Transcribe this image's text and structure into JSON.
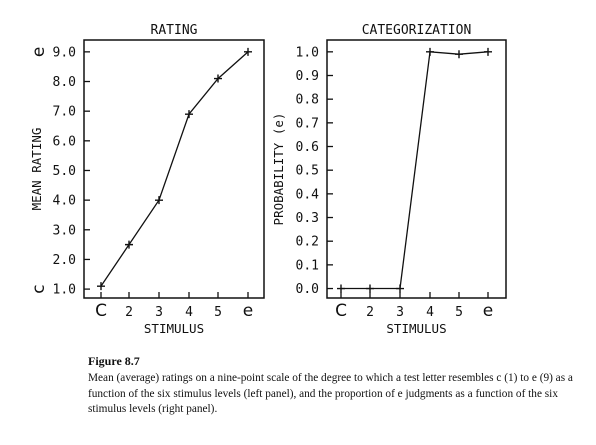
{
  "chart_data": [
    {
      "type": "line",
      "title": "RATING",
      "xlabel": "STIMULUS",
      "ylabel": "MEAN RATING",
      "categories": [
        "C",
        "2",
        "3",
        "4",
        "5",
        "e"
      ],
      "series": [
        {
          "values": [
            1.1,
            2.5,
            4.0,
            6.9,
            8.1,
            9.0
          ]
        }
      ],
      "ylim": [
        0.7,
        9.4
      ],
      "yticks": [
        "1.0",
        "2.0",
        "3.0",
        "4.0",
        "5.0",
        "6.0",
        "7.0",
        "8.0",
        "9.0"
      ],
      "y_end_labels": {
        "bottom": "c",
        "top": "e"
      },
      "grid": false
    },
    {
      "type": "line",
      "title": "CATEGORIZATION",
      "xlabel": "STIMULUS",
      "ylabel": "PROBABILITY (e)",
      "categories": [
        "C",
        "2",
        "3",
        "4",
        "5",
        "e"
      ],
      "series": [
        {
          "values": [
            0.0,
            0.0,
            0.0,
            1.0,
            0.99,
            1.0
          ]
        }
      ],
      "ylim": [
        -0.04,
        1.05
      ],
      "yticks": [
        "0.0",
        "0.1",
        "0.2",
        "0.3",
        "0.4",
        "0.5",
        "0.6",
        "0.7",
        "0.8",
        "0.9",
        "1.0"
      ],
      "grid": false
    }
  ],
  "caption": {
    "title": "Figure 8.7",
    "text": "Mean (average) ratings on a nine-point scale of the degree to which a test letter resembles c (1) to e (9) as a function of the six stimulus levels (left panel), and the proportion of e judgments as a function of the six stimulus levels (right panel)."
  }
}
